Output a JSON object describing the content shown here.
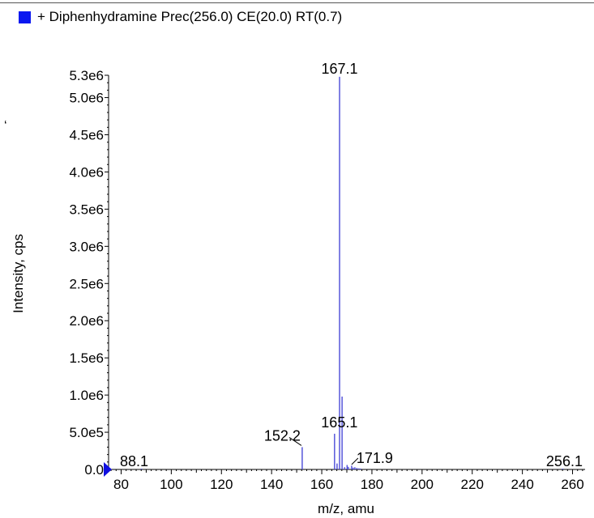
{
  "legend": {
    "swatch_color": "#0a18f0",
    "label": "+ Diphenhydramine Prec(256.0) CE(20.0) RT(0.7)"
  },
  "chart_data": {
    "type": "bar",
    "xlabel": "m/z, amu",
    "ylabel": "Intensity, cps",
    "xlim": [
      75,
      265
    ],
    "ylim": [
      0,
      5300000
    ],
    "x_ticks": [
      80,
      100,
      120,
      140,
      160,
      180,
      200,
      220,
      240,
      260
    ],
    "y_ticks": [
      {
        "label": "0.0",
        "value": 0
      },
      {
        "label": "5.0e5",
        "value": 500000
      },
      {
        "label": "1.0e6",
        "value": 1000000
      },
      {
        "label": "1.5e6",
        "value": 1500000
      },
      {
        "label": "2.0e6",
        "value": 2000000
      },
      {
        "label": "2.5e6",
        "value": 2500000
      },
      {
        "label": "3.0e6",
        "value": 3000000
      },
      {
        "label": "3.5e6",
        "value": 3500000
      },
      {
        "label": "4.0e6",
        "value": 4000000
      },
      {
        "label": "4.5e6",
        "value": 4500000
      },
      {
        "label": "5.0e6",
        "value": 5000000
      },
      {
        "label": "5.3e6",
        "value": 5300000
      }
    ],
    "series": [
      {
        "color": "#4a4ad8",
        "peaks": [
          {
            "mz": 88.1,
            "intensity": 4000
          },
          {
            "mz": 152.2,
            "intensity": 300000
          },
          {
            "mz": 165.1,
            "intensity": 480000
          },
          {
            "mz": 166.1,
            "intensity": 80000
          },
          {
            "mz": 167.1,
            "intensity": 5280000
          },
          {
            "mz": 168.1,
            "intensity": 980000
          },
          {
            "mz": 169.1,
            "intensity": 30000
          },
          {
            "mz": 170.1,
            "intensity": 60000
          },
          {
            "mz": 170.6,
            "intensity": 35000
          },
          {
            "mz": 171.9,
            "intensity": 50000
          },
          {
            "mz": 172.5,
            "intensity": 25000
          },
          {
            "mz": 173.2,
            "intensity": 30000
          },
          {
            "mz": 174.0,
            "intensity": 20000
          },
          {
            "mz": 174.8,
            "intensity": 15000
          },
          {
            "mz": 175.5,
            "intensity": 12000
          },
          {
            "mz": 256.1,
            "intensity": 8000
          }
        ]
      }
    ],
    "peak_labels": [
      {
        "text": "167.1",
        "mz": 167.1,
        "intensity": 5280000,
        "leader": false
      },
      {
        "text": "165.1",
        "mz": 165.1,
        "intensity": 480000,
        "leader": false
      },
      {
        "text": "152.2",
        "mz": 152.2,
        "intensity": 300000,
        "leader": true
      },
      {
        "text": "171.9",
        "mz": 171.9,
        "intensity": 50000,
        "leader": true
      },
      {
        "text": "88.1",
        "mz": 88.1,
        "intensity": 4000,
        "leader": false
      },
      {
        "text": "256.1",
        "mz": 256.1,
        "intensity": 8000,
        "leader": false
      }
    ],
    "marker_color": "#1010e0",
    "stray_glyph": "‘"
  }
}
